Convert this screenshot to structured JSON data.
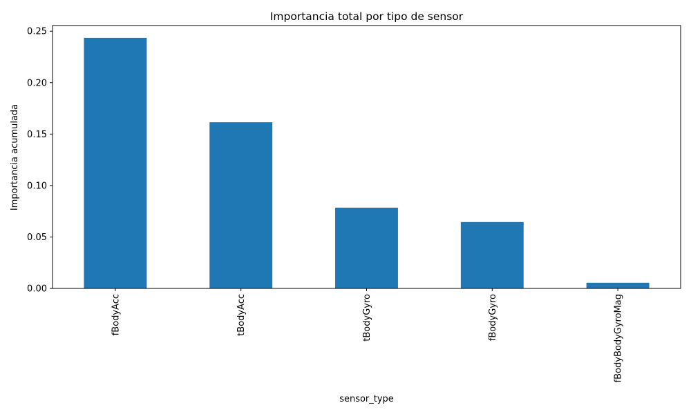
{
  "chart_data": {
    "type": "bar",
    "title": "Importancia total por tipo de sensor",
    "xlabel": "sensor_type",
    "ylabel": "Importancia acumulada",
    "categories": [
      "fBodyAcc",
      "tBodyAcc",
      "tBodyGyro",
      "fBodyGyro",
      "fBodyBodyGyroMag"
    ],
    "values": [
      0.2435,
      0.1615,
      0.0785,
      0.0645,
      0.0055
    ],
    "ylim": [
      0,
      0.2555
    ],
    "yticks": [
      0.0,
      0.05,
      0.1,
      0.15,
      0.2,
      0.25
    ],
    "ytick_labels": [
      "0.00",
      "0.05",
      "0.10",
      "0.15",
      "0.20",
      "0.25"
    ],
    "bar_color": "#1f77b4",
    "grid": false,
    "legend": "none"
  }
}
